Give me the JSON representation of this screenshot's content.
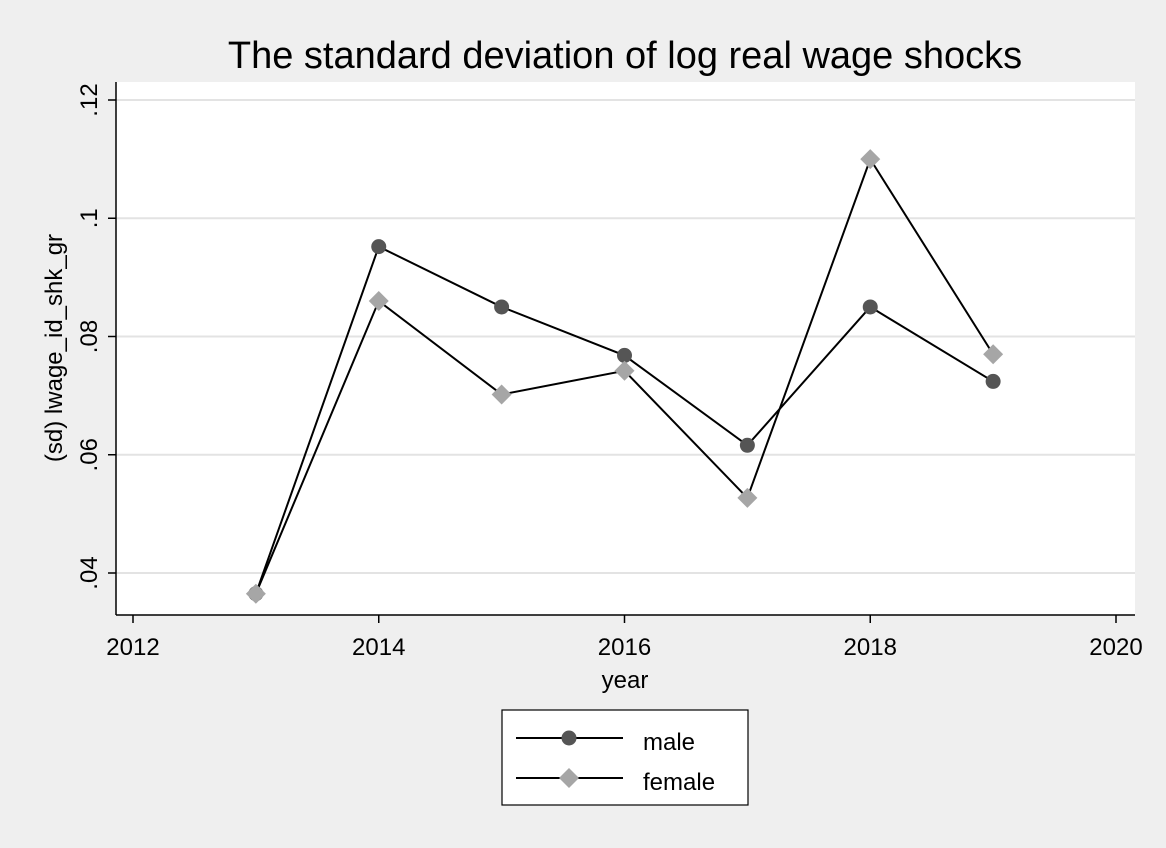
{
  "chart_data": {
    "type": "line",
    "title": "The standard deviation of log real wage shocks",
    "xlabel": "year",
    "ylabel": "(sd) lwage_id_shk_gr",
    "xlim": [
      2012,
      2020
    ],
    "ylim": [
      0.033,
      0.123
    ],
    "x_ticks": [
      2012,
      2014,
      2016,
      2018,
      2020
    ],
    "x_tick_labels": [
      "2012",
      "2014",
      "2016",
      "2018",
      "2020"
    ],
    "y_ticks": [
      0.04,
      0.06,
      0.08,
      0.1,
      0.12
    ],
    "y_tick_labels": [
      ".04",
      ".06",
      ".08",
      ".1",
      ".12"
    ],
    "grid": true,
    "legend_position": "bottom-center",
    "series": [
      {
        "name": "male",
        "marker": "circle",
        "color": "#555555",
        "x": [
          2013,
          2014,
          2015,
          2016,
          2017,
          2018,
          2019
        ],
        "y": [
          0.0365,
          0.0952,
          0.085,
          0.0768,
          0.0616,
          0.085,
          0.0724
        ]
      },
      {
        "name": "female",
        "marker": "diamond",
        "color": "#a6a6a6",
        "x": [
          2013,
          2014,
          2015,
          2016,
          2017,
          2018,
          2019
        ],
        "y": [
          0.0365,
          0.086,
          0.0702,
          0.0742,
          0.0527,
          0.11,
          0.077
        ]
      }
    ]
  }
}
